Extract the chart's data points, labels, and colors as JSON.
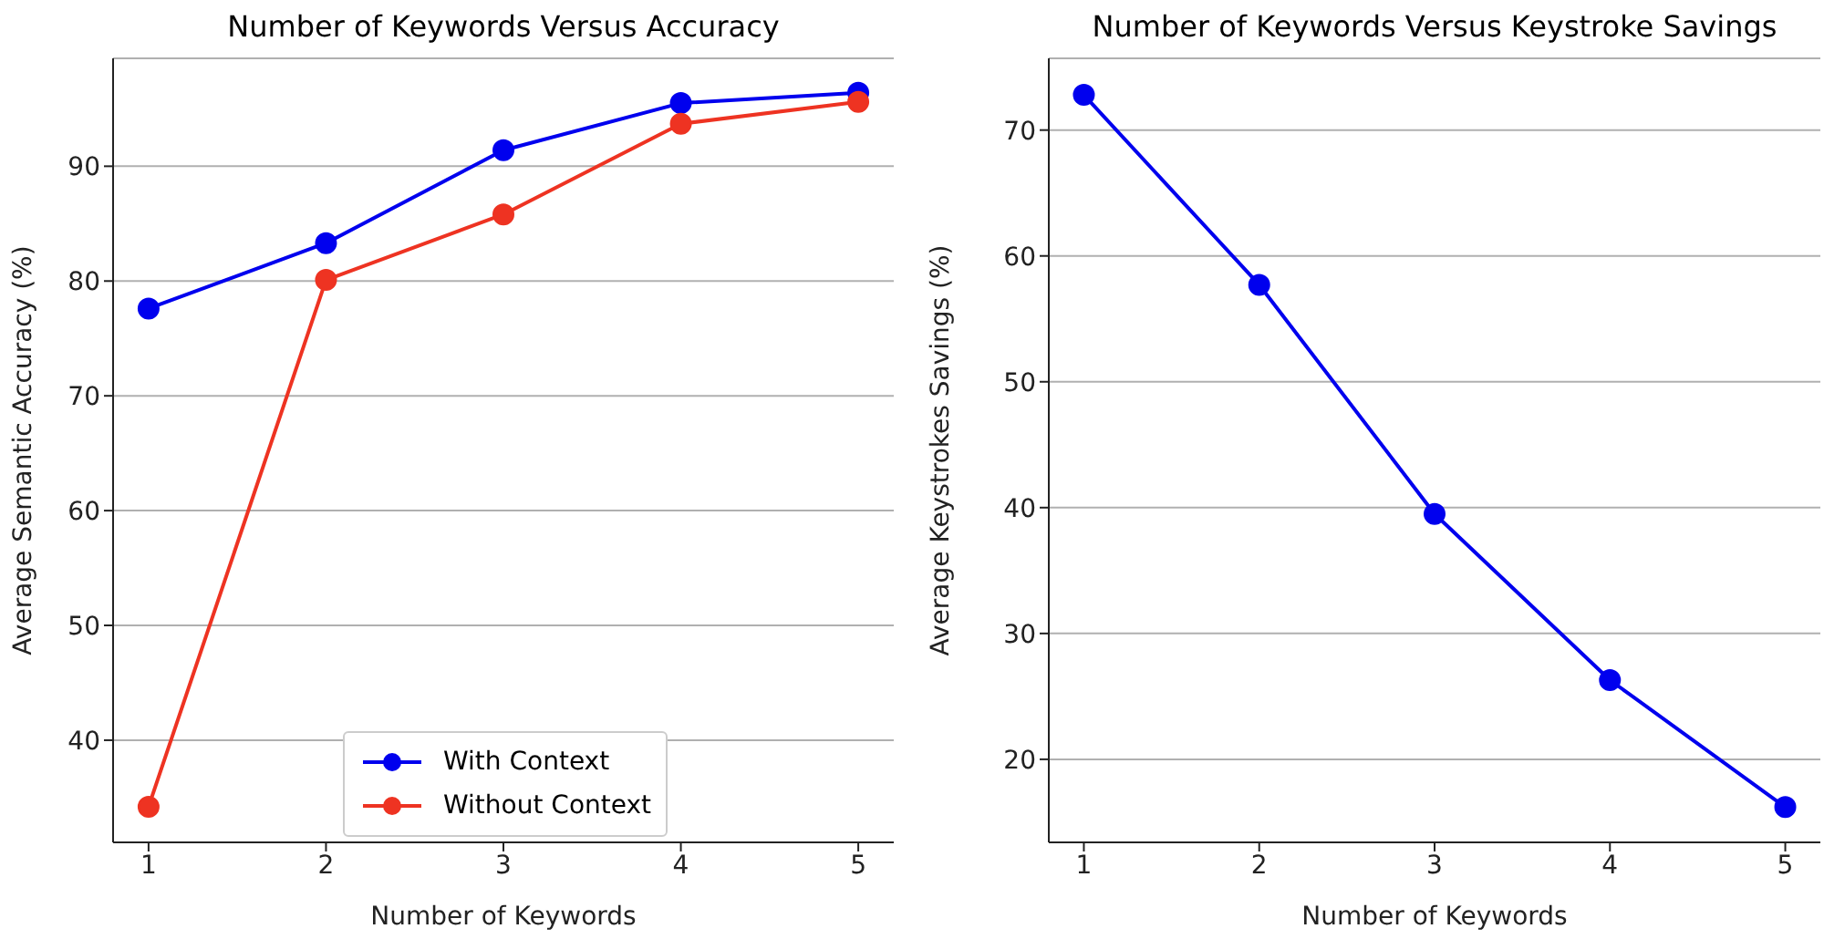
{
  "chart_data": [
    {
      "type": "line",
      "title": "Number of Keywords Versus Accuracy",
      "xlabel": "Number of Keywords",
      "ylabel": "Average Semantic Accuracy (%)",
      "x": [
        1,
        2,
        3,
        4,
        5
      ],
      "xlim": [
        0.8,
        5.2
      ],
      "xticks": [
        1,
        2,
        3,
        4,
        5
      ],
      "ylim": [
        31.1,
        99.4
      ],
      "yticks": [
        40,
        50,
        60,
        70,
        80,
        90
      ],
      "grid": "y",
      "legend": "bottom",
      "marker": "circle",
      "line_style": "solid",
      "series": [
        {
          "name": "With Context",
          "color": "#0000ee",
          "values": [
            77.6,
            83.3,
            91.4,
            95.5,
            96.4
          ]
        },
        {
          "name": "Without Context",
          "color": "#ee3322",
          "values": [
            34.2,
            80.1,
            85.8,
            93.7,
            95.6
          ]
        }
      ]
    },
    {
      "type": "line",
      "title": "Number of Keywords Versus Keystroke Savings",
      "xlabel": "Number of Keywords",
      "ylabel": "Average Keystrokes Savings (%)",
      "x": [
        1,
        2,
        3,
        4,
        5
      ],
      "xlim": [
        0.8,
        5.2
      ],
      "xticks": [
        1,
        2,
        3,
        4,
        5
      ],
      "ylim": [
        13.4,
        75.7
      ],
      "yticks": [
        20,
        30,
        40,
        50,
        60,
        70
      ],
      "grid": "y",
      "marker": "circle",
      "line_style": "solid",
      "series": [
        {
          "color": "#0000ee",
          "values": [
            72.8,
            57.7,
            39.5,
            26.3,
            16.2
          ]
        }
      ]
    }
  ]
}
